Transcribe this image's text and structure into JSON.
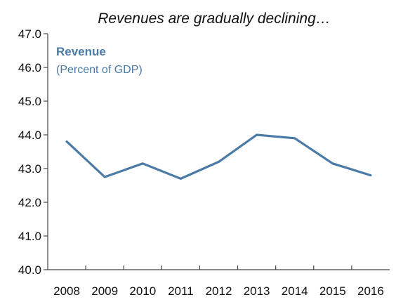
{
  "chart_data": {
    "type": "line",
    "title": "Revenues are gradually declining…",
    "xlabel": "",
    "ylabel": "",
    "x": [
      "2008",
      "2009",
      "2010",
      "2011",
      "2012",
      "2013",
      "2014",
      "2015",
      "2016"
    ],
    "series": [
      {
        "name": "Revenue",
        "subtitle": "(Percent of GDP)",
        "values": [
          43.8,
          42.75,
          43.15,
          42.7,
          43.2,
          44.0,
          43.9,
          43.15,
          42.8
        ],
        "color": "#4a7aa6"
      }
    ],
    "ylim": [
      40.0,
      47.0
    ],
    "yticks": [
      "40.0",
      "41.0",
      "42.0",
      "43.0",
      "44.0",
      "45.0",
      "46.0",
      "47.0"
    ],
    "grid": false,
    "legend": "top-left"
  }
}
